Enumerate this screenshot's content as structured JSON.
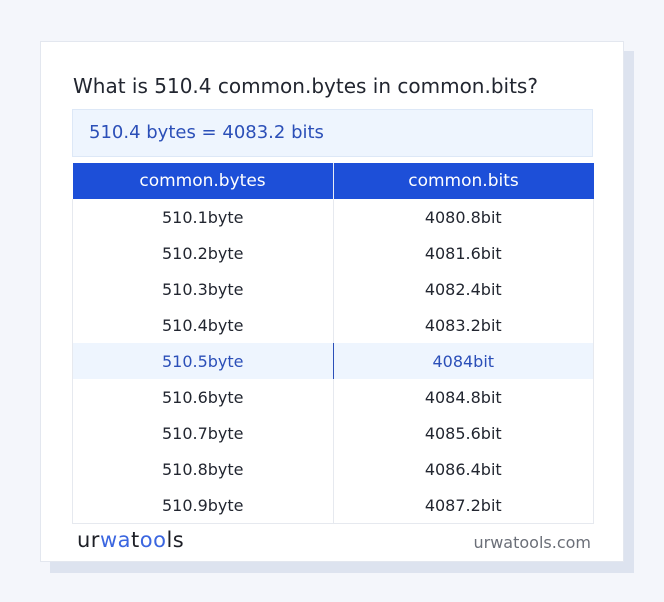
{
  "question": "What is 510.4 common.bytes in common.bits?",
  "result": "510.4 bytes = 4083.2 bits",
  "table": {
    "headers": [
      "common.bytes",
      "common.bits"
    ],
    "rows": [
      [
        "510.1byte",
        "4080.8bit"
      ],
      [
        "510.2byte",
        "4081.6bit"
      ],
      [
        "510.3byte",
        "4082.4bit"
      ],
      [
        "510.4byte",
        "4083.2bit"
      ],
      [
        "510.5byte",
        "4084bit"
      ],
      [
        "510.6byte",
        "4084.8bit"
      ],
      [
        "510.7byte",
        "4085.6bit"
      ],
      [
        "510.8byte",
        "4086.4bit"
      ],
      [
        "510.9byte",
        "4087.2bit"
      ]
    ],
    "highlighted_row": 4
  },
  "footer": {
    "logo": "urwatools",
    "logo_parts": [
      "ur",
      "wa",
      "t",
      "oo",
      "ls"
    ],
    "site": "urwatools.com"
  },
  "colors": {
    "accent": "#1d4fd8",
    "highlight_bg": "#eef5fe",
    "highlight_text": "#2b4fb8"
  }
}
